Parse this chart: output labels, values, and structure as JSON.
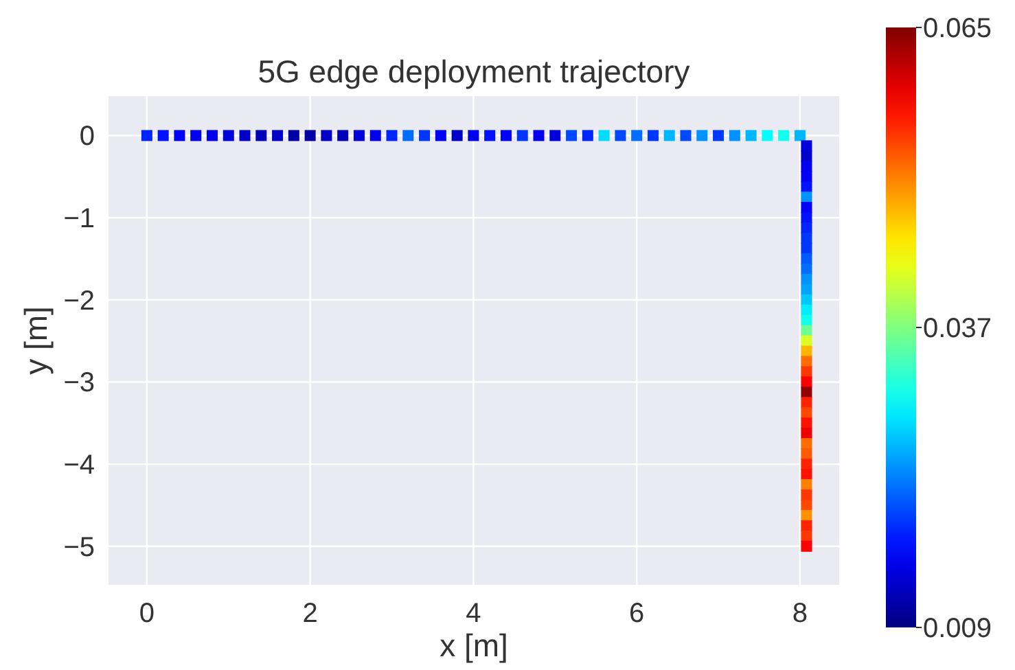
{
  "chart_data": {
    "type": "scatter",
    "title": "5G edge deployment trajectory",
    "xlabel": "x [m]",
    "ylabel": "y [m]",
    "xlim": [
      -0.47,
      8.48
    ],
    "ylim": [
      -5.47,
      0.48
    ],
    "xticks": [
      0,
      2,
      4,
      6,
      8
    ],
    "yticks": [
      0,
      -1,
      -2,
      -3,
      -4,
      -5
    ],
    "grid": true,
    "marker": "square",
    "clim": [
      0.009,
      0.065
    ],
    "cticks": [
      0.009,
      0.037,
      0.065
    ],
    "series": [
      {
        "x": [
          0,
          0.2,
          0.4,
          0.6,
          0.8,
          1.0,
          1.2,
          1.4,
          1.6,
          1.8,
          2.0,
          2.2,
          2.4,
          2.6,
          2.8,
          3.0,
          3.2,
          3.4,
          3.6,
          3.8,
          4.0,
          4.2,
          4.4,
          4.6,
          4.8,
          5.0,
          5.2,
          5.4,
          5.6,
          5.8,
          6.0,
          6.2,
          6.4,
          6.6,
          6.8,
          7.0,
          7.2,
          7.4,
          7.6,
          7.8,
          8.0,
          8.08,
          8.08,
          8.08,
          8.08,
          8.08,
          8.08,
          8.08,
          8.08,
          8.08,
          8.08,
          8.08,
          8.08,
          8.08,
          8.08,
          8.08,
          8.08,
          8.08,
          8.08,
          8.08,
          8.08,
          8.08,
          8.08,
          8.08,
          8.08,
          8.08,
          8.08,
          8.08,
          8.08,
          8.08,
          8.08,
          8.08,
          8.08,
          8.08,
          8.08,
          8.08,
          8.08,
          8.08,
          8.08,
          8.08,
          8.08
        ],
        "values": [
          0,
          0,
          0,
          0,
          0,
          0,
          0,
          0,
          0,
          0,
          0,
          0,
          0,
          0,
          0,
          0,
          0,
          0,
          0,
          0,
          0,
          0,
          0,
          0,
          0,
          0,
          0,
          0,
          0,
          0,
          0,
          0,
          0,
          0,
          0,
          0,
          0,
          0,
          0,
          0,
          0,
          -0.125,
          -0.25,
          -0.375,
          -0.5,
          -0.625,
          -0.75,
          -0.875,
          -1.0,
          -1.125,
          -1.25,
          -1.375,
          -1.5,
          -1.625,
          -1.75,
          -1.875,
          -2.0,
          -2.125,
          -2.25,
          -2.375,
          -2.5,
          -2.625,
          -2.75,
          -2.875,
          -3.0,
          -3.125,
          -3.25,
          -3.375,
          -3.5,
          -3.625,
          -3.75,
          -3.875,
          -4.0,
          -4.125,
          -4.25,
          -4.375,
          -4.5,
          -4.625,
          -4.75,
          -4.875,
          -5.0
        ],
        "cvalues": [
          0.018,
          0.017,
          0.016,
          0.015,
          0.015,
          0.014,
          0.013,
          0.012,
          0.013,
          0.011,
          0.011,
          0.013,
          0.012,
          0.014,
          0.015,
          0.018,
          0.022,
          0.019,
          0.016,
          0.013,
          0.015,
          0.017,
          0.016,
          0.019,
          0.015,
          0.014,
          0.02,
          0.018,
          0.028,
          0.02,
          0.022,
          0.019,
          0.026,
          0.02,
          0.024,
          0.019,
          0.024,
          0.026,
          0.03,
          0.031,
          0.026,
          0.014,
          0.013,
          0.015,
          0.016,
          0.017,
          0.024,
          0.016,
          0.017,
          0.018,
          0.019,
          0.019,
          0.021,
          0.022,
          0.024,
          0.025,
          0.027,
          0.029,
          0.031,
          0.036,
          0.042,
          0.048,
          0.052,
          0.055,
          0.058,
          0.064,
          0.056,
          0.054,
          0.057,
          0.059,
          0.052,
          0.053,
          0.056,
          0.057,
          0.051,
          0.055,
          0.054,
          0.05,
          0.056,
          0.055,
          0.058
        ]
      }
    ]
  }
}
